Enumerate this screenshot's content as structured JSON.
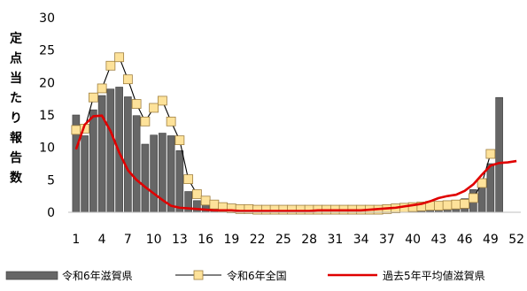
{
  "chart_data": {
    "type": "bar",
    "title": "",
    "xlabel": "",
    "ylabel": "定点当たり報告数",
    "xlim": [
      1,
      52
    ],
    "ylim": [
      0,
      30
    ],
    "yticks": [
      0,
      5,
      10,
      15,
      20,
      25,
      30
    ],
    "xticks": [
      1,
      4,
      7,
      10,
      13,
      16,
      19,
      22,
      25,
      28,
      31,
      34,
      37,
      40,
      43,
      46,
      49,
      52
    ],
    "grid": false,
    "legend_position": "bottom",
    "series": [
      {
        "name": "令和6年滋賀県",
        "type": "bar",
        "color": "#666666",
        "x": [
          1,
          2,
          3,
          4,
          5,
          6,
          7,
          8,
          9,
          10,
          11,
          12,
          13,
          14,
          15,
          16,
          17,
          18,
          19,
          20,
          21,
          22,
          23,
          24,
          25,
          26,
          27,
          28,
          29,
          30,
          31,
          32,
          33,
          34,
          35,
          36,
          37,
          38,
          39,
          40,
          41,
          42,
          43,
          44,
          45,
          46,
          47,
          48,
          49,
          50
        ],
        "values": [
          15.0,
          11.8,
          15.8,
          18.0,
          19.0,
          19.3,
          17.8,
          14.9,
          10.5,
          11.9,
          12.2,
          11.8,
          9.5,
          3.2,
          1.8,
          1.3,
          1.1,
          0.7,
          0.5,
          0.4,
          0.4,
          0.3,
          0.3,
          0.3,
          0.3,
          0.3,
          0.3,
          0.4,
          0.4,
          0.4,
          0.4,
          0.4,
          0.3,
          0.4,
          0.5,
          0.6,
          0.6,
          0.7,
          0.9,
          1.0,
          1.2,
          1.0,
          0.8,
          1.1,
          1.5,
          2.1,
          3.5,
          4.8,
          7.5,
          17.7
        ]
      },
      {
        "name": "令和6年全国",
        "type": "line",
        "color": "#000000",
        "marker_fill": "#fde29a",
        "marker_stroke": "#a08040",
        "x": [
          1,
          2,
          3,
          4,
          5,
          6,
          7,
          8,
          9,
          10,
          11,
          12,
          13,
          14,
          15,
          16,
          17,
          18,
          19,
          20,
          21,
          22,
          23,
          24,
          25,
          26,
          27,
          28,
          29,
          30,
          31,
          32,
          33,
          34,
          35,
          36,
          37,
          38,
          39,
          40,
          41,
          42,
          43,
          44,
          45,
          46,
          47,
          48,
          49
        ],
        "values": [
          12.7,
          12.9,
          17.7,
          19.1,
          22.6,
          23.9,
          20.5,
          16.7,
          14.0,
          16.1,
          17.2,
          14.0,
          11.1,
          5.1,
          2.8,
          1.8,
          1.2,
          0.8,
          0.6,
          0.5,
          0.5,
          0.4,
          0.4,
          0.4,
          0.4,
          0.4,
          0.4,
          0.4,
          0.4,
          0.4,
          0.4,
          0.4,
          0.4,
          0.4,
          0.4,
          0.4,
          0.5,
          0.6,
          0.7,
          0.8,
          0.9,
          1.0,
          1.0,
          1.1,
          1.2,
          1.3,
          2.2,
          4.5,
          9.0
        ]
      },
      {
        "name": "過去5年平均値滋賀県",
        "type": "line",
        "color": "#e00000",
        "x": [
          1,
          2,
          3,
          4,
          5,
          6,
          7,
          8,
          9,
          10,
          11,
          12,
          13,
          14,
          15,
          16,
          17,
          18,
          19,
          20,
          21,
          22,
          23,
          24,
          25,
          26,
          27,
          28,
          29,
          30,
          31,
          32,
          33,
          34,
          35,
          36,
          37,
          38,
          39,
          40,
          41,
          42,
          43,
          44,
          45,
          46,
          47,
          48,
          49,
          50,
          51,
          52
        ],
        "values": [
          9.7,
          13.5,
          14.8,
          14.9,
          12.5,
          9.2,
          6.5,
          5.0,
          3.9,
          2.9,
          1.9,
          1.0,
          0.7,
          0.6,
          0.5,
          0.4,
          0.3,
          0.3,
          0.3,
          0.2,
          0.2,
          0.2,
          0.2,
          0.2,
          0.2,
          0.2,
          0.2,
          0.2,
          0.3,
          0.3,
          0.3,
          0.3,
          0.3,
          0.3,
          0.4,
          0.5,
          0.6,
          0.7,
          0.9,
          1.1,
          1.3,
          1.7,
          2.2,
          2.5,
          2.7,
          3.3,
          4.3,
          5.8,
          7.2,
          7.6,
          7.7,
          7.9
        ]
      }
    ]
  }
}
